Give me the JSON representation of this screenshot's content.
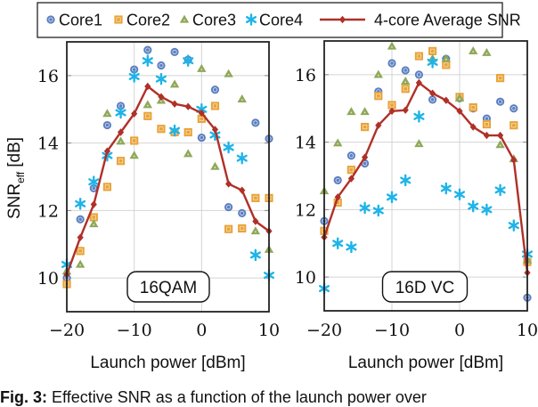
{
  "caption": {
    "label": "Fig. 3:",
    "text": "Effective SNR as a function of the launch power over"
  },
  "chart_data": [
    {
      "type": "scatter",
      "panel_label": "16QAM",
      "xlabel": "Launch power [dBm]",
      "ylabel": "SNR",
      "ylabel_sub": "eff",
      "ylabel_unit": "[dB]",
      "xlim": [
        -20,
        10
      ],
      "ylim": [
        9,
        17
      ],
      "xticks": [
        -20,
        -10,
        0,
        10
      ],
      "xtick_labels": [
        "−20",
        "−10",
        "0",
        "10"
      ],
      "yticks": [
        10,
        12,
        14,
        16
      ],
      "ytick_labels": [
        "10",
        "12",
        "14",
        "16"
      ],
      "grid": true,
      "x": [
        -20,
        -18,
        -16,
        -14,
        -12,
        -10,
        -8,
        -6,
        -4,
        -2,
        0,
        2,
        4,
        6,
        8,
        10
      ],
      "series": [
        {
          "name": "Core1",
          "marker": "circle",
          "values": [
            10.0,
            11.74,
            12.66,
            14.53,
            15.1,
            16.18,
            16.76,
            16.3,
            16.7,
            16.47,
            14.16,
            15.58,
            12.1,
            11.92,
            14.6,
            14.13
          ]
        },
        {
          "name": "Core2",
          "marker": "square",
          "values": [
            9.82,
            10.8,
            11.8,
            12.7,
            13.47,
            14.07,
            14.8,
            14.42,
            14.32,
            14.32,
            14.72,
            15.1,
            11.45,
            11.47,
            12.37,
            12.37
          ]
        },
        {
          "name": "Core3",
          "marker": "triangle",
          "values": [
            10.2,
            10.4,
            11.6,
            14.87,
            14.05,
            13.63,
            15.13,
            15.26,
            15.74,
            13.68,
            16.2,
            13.3,
            16.05,
            15.3,
            11.39,
            10.84
          ]
        },
        {
          "name": "Core4",
          "marker": "star",
          "values": [
            10.4,
            12.2,
            12.85,
            13.63,
            14.9,
            15.97,
            16.44,
            15.9,
            14.37,
            16.44,
            15.0,
            14.24,
            13.87,
            13.55,
            10.68,
            10.08
          ]
        },
        {
          "name": "4-core Average SNR",
          "marker": "diamond-line",
          "values": [
            10.1,
            11.2,
            12.18,
            13.76,
            14.32,
            14.87,
            15.68,
            15.37,
            15.16,
            15.08,
            14.89,
            14.4,
            12.79,
            12.6,
            11.68,
            11.39
          ]
        }
      ]
    },
    {
      "type": "scatter",
      "panel_label": "16D VC",
      "xlabel": "Launch power [dBm]",
      "xlim": [
        -20,
        10
      ],
      "ylim": [
        9,
        17
      ],
      "xticks": [
        -20,
        -10,
        0,
        10
      ],
      "xtick_labels": [
        "−20",
        "−10",
        "0",
        "10"
      ],
      "yticks": [
        10,
        12,
        14,
        16
      ],
      "ytick_labels": [
        "10",
        "12",
        "14",
        "16"
      ],
      "grid": true,
      "x": [
        -20,
        -18,
        -16,
        -14,
        -12,
        -10,
        -8,
        -6,
        -4,
        -2,
        0,
        2,
        4,
        6,
        8,
        10
      ],
      "series": [
        {
          "name": "Core1",
          "marker": "circle",
          "values": [
            11.66,
            12.87,
            13.6,
            13.37,
            15.5,
            16.34,
            16.13,
            16.0,
            15.26,
            16.47,
            15.3,
            15.0,
            14.7,
            15.2,
            15.0,
            9.39
          ]
        },
        {
          "name": "Core2",
          "marker": "square",
          "values": [
            11.37,
            12.21,
            13.18,
            14.45,
            15.37,
            15.1,
            15.58,
            16.55,
            16.7,
            16.29,
            15.34,
            15.03,
            14.53,
            15.9,
            14.5,
            10.45
          ]
        },
        {
          "name": "Core3",
          "marker": "triangle",
          "values": [
            12.55,
            13.97,
            14.9,
            14.9,
            16.0,
            16.84,
            15.8,
            13.95,
            16.47,
            16.47,
            15.3,
            16.7,
            16.65,
            13.92,
            13.5,
            10.5
          ]
        },
        {
          "name": "Core4",
          "marker": "star",
          "values": [
            9.66,
            11.0,
            10.89,
            12.05,
            11.97,
            12.37,
            12.87,
            14.76,
            16.37,
            12.63,
            12.45,
            12.1,
            12.0,
            12.58,
            11.53,
            10.68
          ]
        },
        {
          "name": "4-core Average SNR",
          "marker": "diamond-line",
          "values": [
            11.18,
            12.37,
            12.92,
            13.55,
            14.5,
            14.92,
            14.95,
            15.76,
            15.45,
            15.24,
            14.92,
            14.45,
            14.2,
            14.2,
            13.47,
            10.13
          ]
        }
      ]
    }
  ],
  "legend": {
    "placement": "top-center",
    "entries": [
      {
        "name": "Core1",
        "marker": "circle",
        "color": "#5b7fc0"
      },
      {
        "name": "Core2",
        "marker": "square",
        "color": "#e8a33a"
      },
      {
        "name": "Core3",
        "marker": "triangle",
        "color": "#8fa85a"
      },
      {
        "name": "Core4",
        "marker": "star",
        "color": "#1eb4e8"
      },
      {
        "name": "4-core Average SNR",
        "marker": "diamond-line",
        "color": "#b03028"
      }
    ]
  },
  "colors": {
    "Core1": "#5b7fc0",
    "Core2": "#e8a33a",
    "Core3": "#8fa85a",
    "Core4": "#1eb4e8",
    "4-core Average SNR": "#b03028",
    "grid": "#d4d4d4",
    "axis": "#222222"
  }
}
